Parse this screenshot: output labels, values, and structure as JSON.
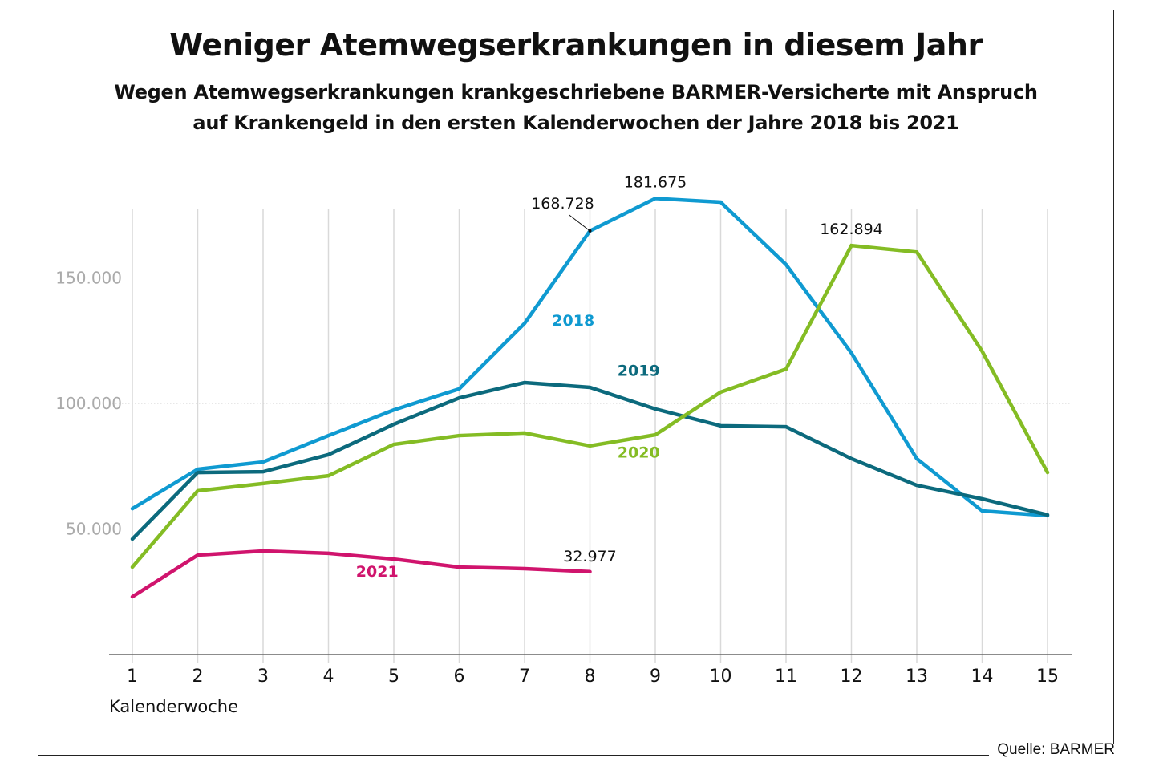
{
  "chart_data": {
    "type": "line",
    "title": "Weniger Atemwegserkrankungen in diesem Jahr",
    "subtitle_lines": [
      "Wegen Atemwegserkrankungen krankgeschriebene BARMER-Versicherte mit Anspruch",
      "auf Krankengeld in den ersten Kalenderwochen der Jahre 2018 bis 2021"
    ],
    "xlabel": "Kalenderwoche",
    "ylabel": "",
    "x": [
      1,
      2,
      3,
      4,
      5,
      6,
      7,
      8,
      9,
      10,
      11,
      12,
      13,
      14,
      15
    ],
    "x_tick_labels": [
      "1",
      "2",
      "3",
      "4",
      "5",
      "6",
      "7",
      "8",
      "9",
      "10",
      "11",
      "12",
      "13",
      "14",
      "15"
    ],
    "ylim": [
      0,
      195000
    ],
    "y_ticks": [
      50000,
      100000,
      150000
    ],
    "y_tick_labels": [
      "50.000",
      "100.000",
      "150.000"
    ],
    "grid": "horizontal dotted at y ticks, vertical lines at each week",
    "legend": "inline labels next to lines",
    "series": [
      {
        "name": "2018",
        "color": "#0f9ad1",
        "values": [
          58100,
          73800,
          76700,
          87200,
          97400,
          105800,
          131900,
          168728,
          181675,
          180200,
          155300,
          120100,
          78000,
          57200,
          55300
        ],
        "label_week": 7.5,
        "label_value": 131000
      },
      {
        "name": "2019",
        "color": "#0c6a7d",
        "values": [
          46000,
          72500,
          72800,
          79600,
          91700,
          102200,
          108300,
          106400,
          97800,
          91100,
          90700,
          78000,
          67400,
          62000,
          55600
        ],
        "label_week": 8.5,
        "label_value": 111000
      },
      {
        "name": "2020",
        "color": "#84bc24",
        "values": [
          34800,
          65200,
          68100,
          71200,
          83700,
          87200,
          88200,
          83100,
          87500,
          104500,
          113700,
          162894,
          160300,
          120800,
          72500
        ],
        "label_week": 8.5,
        "label_value": 78500
      },
      {
        "name": "2021",
        "color": "#d0146d",
        "values": [
          23000,
          39600,
          41200,
          40300,
          38000,
          34800,
          34200,
          32977
        ],
        "label_week": 4.5,
        "label_value": 31000
      }
    ],
    "annotations": [
      {
        "text": "168.728",
        "series": "2018",
        "week": 8,
        "value": 168728,
        "leader_line": true
      },
      {
        "text": "181.675",
        "series": "2018",
        "week": 9,
        "value": 181675,
        "leader_line": false
      },
      {
        "text": "162.894",
        "series": "2020",
        "week": 12,
        "value": 162894,
        "leader_line": false
      },
      {
        "text": "32.977",
        "series": "2021",
        "week": 8,
        "value": 32977,
        "leader_line": false
      }
    ]
  },
  "source": "Quelle: BARMER"
}
